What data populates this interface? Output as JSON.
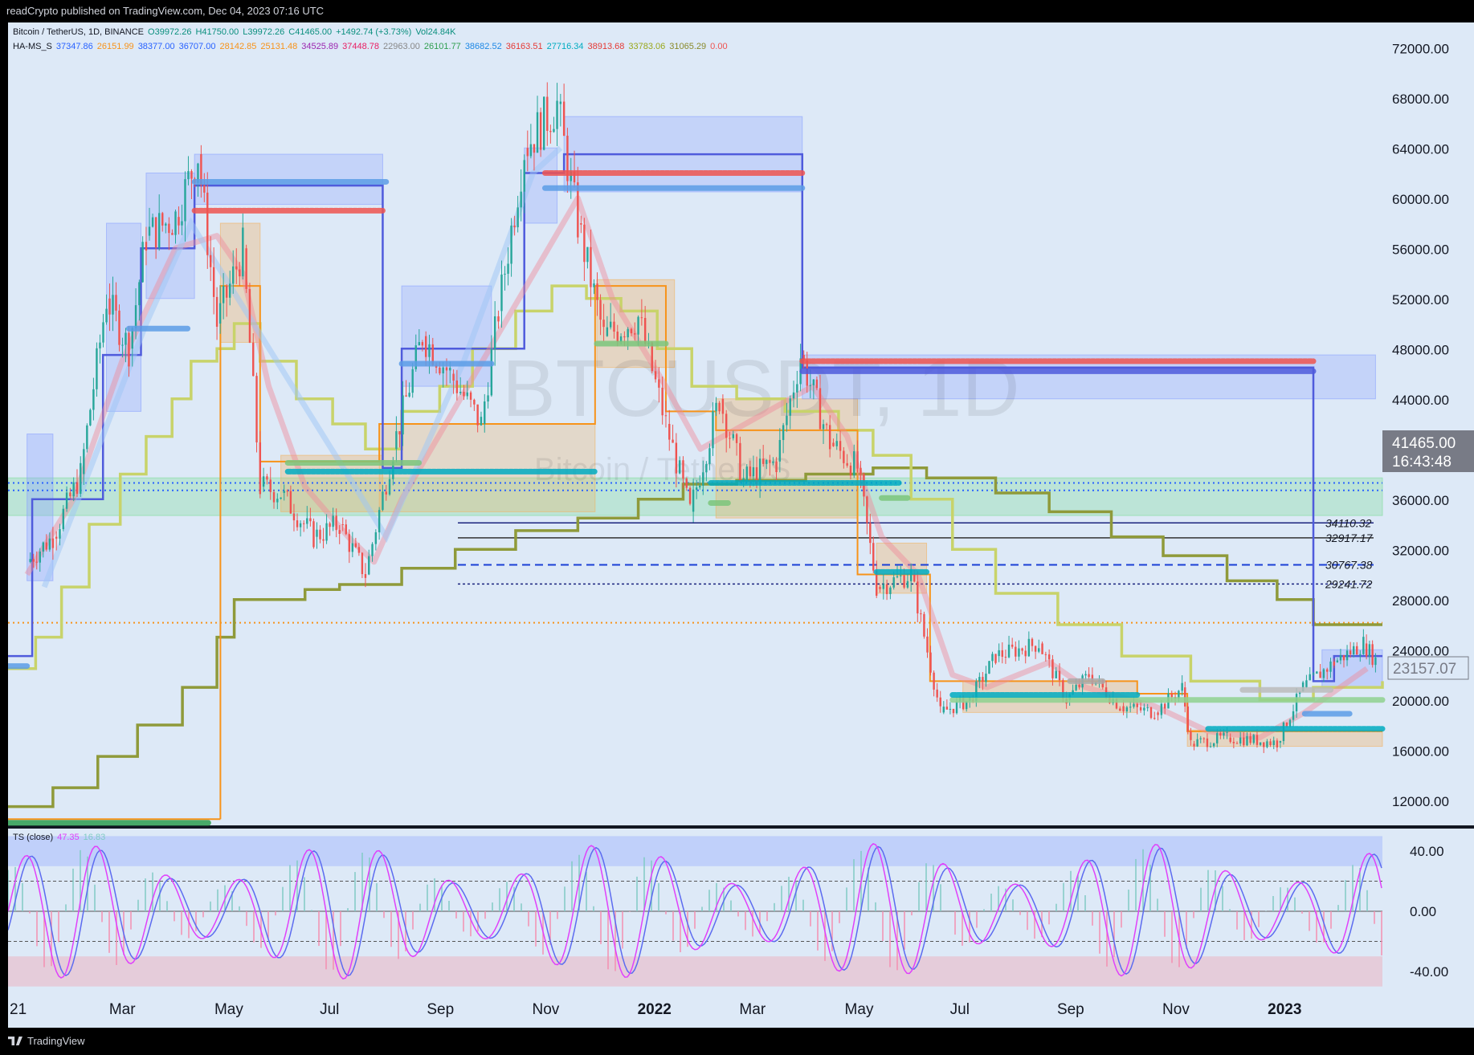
{
  "header": {
    "publish_line": "readCrypto published on TradingView.com, Dec 04, 2023 07:16 UTC"
  },
  "legend": {
    "symbol_line": "Bitcoin / TetherUS, 1D, BINANCE",
    "ohlc": [
      {
        "text": "O39972.26",
        "color": "#0a8f7e"
      },
      {
        "text": "H41750.00",
        "color": "#0a8f7e"
      },
      {
        "text": "L39972.26",
        "color": "#0a8f7e"
      },
      {
        "text": "C41465.00",
        "color": "#0a8f7e"
      },
      {
        "text": "+1492.74 (+3.73%)",
        "color": "#0a8f7e"
      },
      {
        "text": "Vol24.84K",
        "color": "#0a8f7e"
      }
    ],
    "indicator_name": "HA-MS_S",
    "indicator_values": [
      {
        "text": "37347.86",
        "color": "#2962ff"
      },
      {
        "text": "26151.99",
        "color": "#f7931a"
      },
      {
        "text": "38377.00",
        "color": "#2962ff"
      },
      {
        "text": "36707.00",
        "color": "#2962ff"
      },
      {
        "text": "28142.85",
        "color": "#f7931a"
      },
      {
        "text": "25131.48",
        "color": "#f7931a"
      },
      {
        "text": "34525.89",
        "color": "#9c27b0"
      },
      {
        "text": "37448.78",
        "color": "#e91e63"
      },
      {
        "text": "22963.00",
        "color": "#888888"
      },
      {
        "text": "26101.77",
        "color": "#2e9e4f"
      },
      {
        "text": "38682.52",
        "color": "#1e88e5"
      },
      {
        "text": "36163.51",
        "color": "#e53935"
      },
      {
        "text": "27716.34",
        "color": "#00acc1"
      },
      {
        "text": "38913.68",
        "color": "#e53935"
      },
      {
        "text": "33783.06",
        "color": "#9aa81c"
      },
      {
        "text": "31065.29",
        "color": "#8a8a2a"
      },
      {
        "text": "0.00",
        "color": "#ef5350"
      }
    ],
    "osc_name": "TS (close)",
    "osc_values": [
      {
        "text": "47.35",
        "color": "#e040fb"
      },
      {
        "text": "16.83",
        "color": "#80cbc4"
      }
    ]
  },
  "watermark": {
    "symbol": "BTCUSDT, 1D",
    "name": "Bitcoin / TetherUS"
  },
  "price_axis": {
    "ticks": [
      "72000.00",
      "68000.00",
      "64000.00",
      "60000.00",
      "56000.00",
      "52000.00",
      "48000.00",
      "44000.00",
      "36000.00",
      "32000.00",
      "28000.00",
      "24000.00",
      "20000.00",
      "16000.00",
      "12000.00"
    ],
    "current_price": "41465.00",
    "countdown": "16:43:48",
    "secondary_label": "23157.07"
  },
  "hlines": [
    {
      "label": "34110.32",
      "value": 34110.32,
      "color": "#1a237e",
      "style": "solid"
    },
    {
      "label": "32917.17",
      "value": 32917.17,
      "color": "#333333",
      "style": "solid"
    },
    {
      "label": "30767.38",
      "value": 30767.38,
      "color": "#1a3fd6",
      "style": "dashed"
    },
    {
      "label": "29241.72",
      "value": 29241.72,
      "color": "#1a237e",
      "style": "dotted"
    }
  ],
  "osc_axis": {
    "ticks": [
      "40.00",
      "0.00",
      "-40.00"
    ]
  },
  "time_axis": {
    "ticks": [
      "21",
      "Mar",
      "May",
      "Jul",
      "Sep",
      "Nov",
      "2022",
      "Mar",
      "May",
      "Jul",
      "Sep",
      "Nov",
      "2023"
    ]
  },
  "footer": {
    "brand": "TradingView"
  },
  "colors": {
    "background": "#131722",
    "panel": "#dde9f7",
    "up": "#26a69a",
    "down": "#ef5350",
    "blue_line": "#4f5bdc",
    "orange_line": "#f7931a",
    "olive_line": "#8f9a3a",
    "yellow_line": "#c8d36a"
  },
  "chart_data": {
    "type": "candlestick",
    "title": "Bitcoin / TetherUS, 1D, BINANCE",
    "y_range": [
      10000,
      74000
    ],
    "x_ticks": [
      "21",
      "Mar",
      "May",
      "Jul",
      "Sep",
      "Nov",
      "2022",
      "Mar",
      "May",
      "Jul",
      "Sep",
      "Nov",
      "2023"
    ],
    "price_path": [
      {
        "x": "2021-01-05",
        "close": 31000
      },
      {
        "x": "2021-01-20",
        "close": 33000
      },
      {
        "x": "2021-02-05",
        "close": 38000
      },
      {
        "x": "2021-02-20",
        "close": 52000
      },
      {
        "x": "2021-03-05",
        "close": 48000
      },
      {
        "x": "2021-03-15",
        "close": 57000
      },
      {
        "x": "2021-04-01",
        "close": 58500
      },
      {
        "x": "2021-04-14",
        "close": 63500
      },
      {
        "x": "2021-04-25",
        "close": 50000
      },
      {
        "x": "2021-05-10",
        "close": 56000
      },
      {
        "x": "2021-05-20",
        "close": 37000
      },
      {
        "x": "2021-06-01",
        "close": 36500
      },
      {
        "x": "2021-06-20",
        "close": 33000
      },
      {
        "x": "2021-07-05",
        "close": 34000
      },
      {
        "x": "2021-07-20",
        "close": 30000
      },
      {
        "x": "2021-08-05",
        "close": 40000
      },
      {
        "x": "2021-08-22",
        "close": 49000
      },
      {
        "x": "2021-09-07",
        "close": 46000
      },
      {
        "x": "2021-09-25",
        "close": 42000
      },
      {
        "x": "2021-10-05",
        "close": 51000
      },
      {
        "x": "2021-10-20",
        "close": 64000
      },
      {
        "x": "2021-11-08",
        "close": 67500
      },
      {
        "x": "2021-11-20",
        "close": 58000
      },
      {
        "x": "2021-12-05",
        "close": 49000
      },
      {
        "x": "2021-12-25",
        "close": 50500
      },
      {
        "x": "2022-01-10",
        "close": 42000
      },
      {
        "x": "2022-01-24",
        "close": 35000
      },
      {
        "x": "2022-02-10",
        "close": 44000
      },
      {
        "x": "2022-02-24",
        "close": 37500
      },
      {
        "x": "2022-03-15",
        "close": 39000
      },
      {
        "x": "2022-03-29",
        "close": 47500
      },
      {
        "x": "2022-04-15",
        "close": 40500
      },
      {
        "x": "2022-05-01",
        "close": 38500
      },
      {
        "x": "2022-05-12",
        "close": 29000
      },
      {
        "x": "2022-06-01",
        "close": 30000
      },
      {
        "x": "2022-06-18",
        "close": 19000
      },
      {
        "x": "2022-07-05",
        "close": 20000
      },
      {
        "x": "2022-07-20",
        "close": 23500
      },
      {
        "x": "2022-08-14",
        "close": 24500
      },
      {
        "x": "2022-08-30",
        "close": 20000
      },
      {
        "x": "2022-09-12",
        "close": 22000
      },
      {
        "x": "2022-09-30",
        "close": 19500
      },
      {
        "x": "2022-10-20",
        "close": 19000
      },
      {
        "x": "2022-11-05",
        "close": 21000
      },
      {
        "x": "2022-11-10",
        "close": 16500
      },
      {
        "x": "2022-12-01",
        "close": 17000
      },
      {
        "x": "2022-12-30",
        "close": 16600
      },
      {
        "x": "2023-01-14",
        "close": 21000
      },
      {
        "x": "2023-02-01",
        "close": 23000
      },
      {
        "x": "2023-02-18",
        "close": 24500
      },
      {
        "x": "2023-02-25",
        "close": 23157
      }
    ],
    "horizontal_levels": [
      34110.32,
      32917.17,
      30767.38,
      29241.72
    ],
    "oscillator": {
      "name": "TS (close)",
      "y_ticks": [
        40,
        0,
        -40
      ],
      "values": [
        47.35,
        16.83
      ]
    }
  }
}
